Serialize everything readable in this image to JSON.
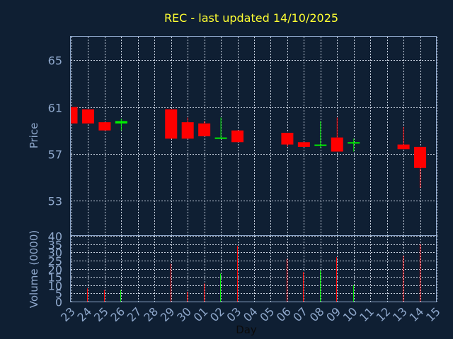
{
  "chart_data": {
    "type": "candlestick",
    "title": "REC - last updated 14/10/2025",
    "colors": {
      "background": "#0f1f33",
      "frame": "#8fa8cc",
      "grid": "#c8d2e0",
      "up": "#00ee00",
      "down": "#ff0000",
      "title": "#ffff33"
    },
    "price": {
      "ylabel": "Price",
      "ylim": [
        50,
        67
      ],
      "ticks": [
        53,
        57,
        61,
        65
      ]
    },
    "volume": {
      "ylabel": "Volume (0000)",
      "ylim": [
        0,
        40
      ],
      "ticks": [
        0,
        5,
        10,
        15,
        20,
        25,
        30,
        35,
        40
      ]
    },
    "xlabel": "Day",
    "x_ticks": [
      "23",
      "24",
      "25",
      "26",
      "27",
      "28",
      "29",
      "30",
      "01",
      "02",
      "03",
      "04",
      "05",
      "06",
      "07",
      "08",
      "09",
      "10",
      "11",
      "12",
      "13",
      "14",
      "15"
    ],
    "candles": [
      {
        "day": "23",
        "open": 61.0,
        "high": 61.0,
        "low": 59.6,
        "close": 59.6,
        "volume": 0
      },
      {
        "day": "24",
        "open": 60.8,
        "high": 60.8,
        "low": 59.6,
        "close": 59.6,
        "volume": 8
      },
      {
        "day": "25",
        "open": 59.7,
        "high": 59.7,
        "low": 59.0,
        "close": 59.0,
        "volume": 7
      },
      {
        "day": "26",
        "open": 59.6,
        "high": 60.0,
        "low": 59.0,
        "close": 59.8,
        "volume": 7
      },
      {
        "day": "29",
        "open": 60.8,
        "high": 60.8,
        "low": 58.3,
        "close": 58.3,
        "volume": 23
      },
      {
        "day": "30",
        "open": 59.7,
        "high": 60.1,
        "low": 58.3,
        "close": 58.3,
        "volume": 6
      },
      {
        "day": "01",
        "open": 59.6,
        "high": 59.8,
        "low": 58.5,
        "close": 58.5,
        "volume": 11
      },
      {
        "day": "02",
        "open": 58.3,
        "high": 60.1,
        "low": 58.3,
        "close": 58.4,
        "volume": 17
      },
      {
        "day": "03",
        "open": 59.0,
        "high": 59.0,
        "low": 58.0,
        "close": 58.0,
        "volume": 34
      },
      {
        "day": "06",
        "open": 58.8,
        "high": 58.8,
        "low": 57.6,
        "close": 57.8,
        "volume": 26
      },
      {
        "day": "07",
        "open": 58.0,
        "high": 58.0,
        "low": 57.6,
        "close": 57.6,
        "volume": 18
      },
      {
        "day": "08",
        "open": 57.7,
        "high": 59.8,
        "low": 57.5,
        "close": 57.8,
        "volume": 19
      },
      {
        "day": "09",
        "open": 58.4,
        "high": 60.1,
        "low": 57.2,
        "close": 57.2,
        "volume": 27
      },
      {
        "day": "10",
        "open": 58.0,
        "high": 58.3,
        "low": 57.2,
        "close": 58.0,
        "volume": 10
      },
      {
        "day": "13",
        "open": 57.8,
        "high": 59.3,
        "low": 57.4,
        "close": 57.4,
        "volume": 28
      },
      {
        "day": "14",
        "open": 57.6,
        "high": 57.6,
        "low": 54.1,
        "close": 55.8,
        "volume": 35
      }
    ]
  }
}
